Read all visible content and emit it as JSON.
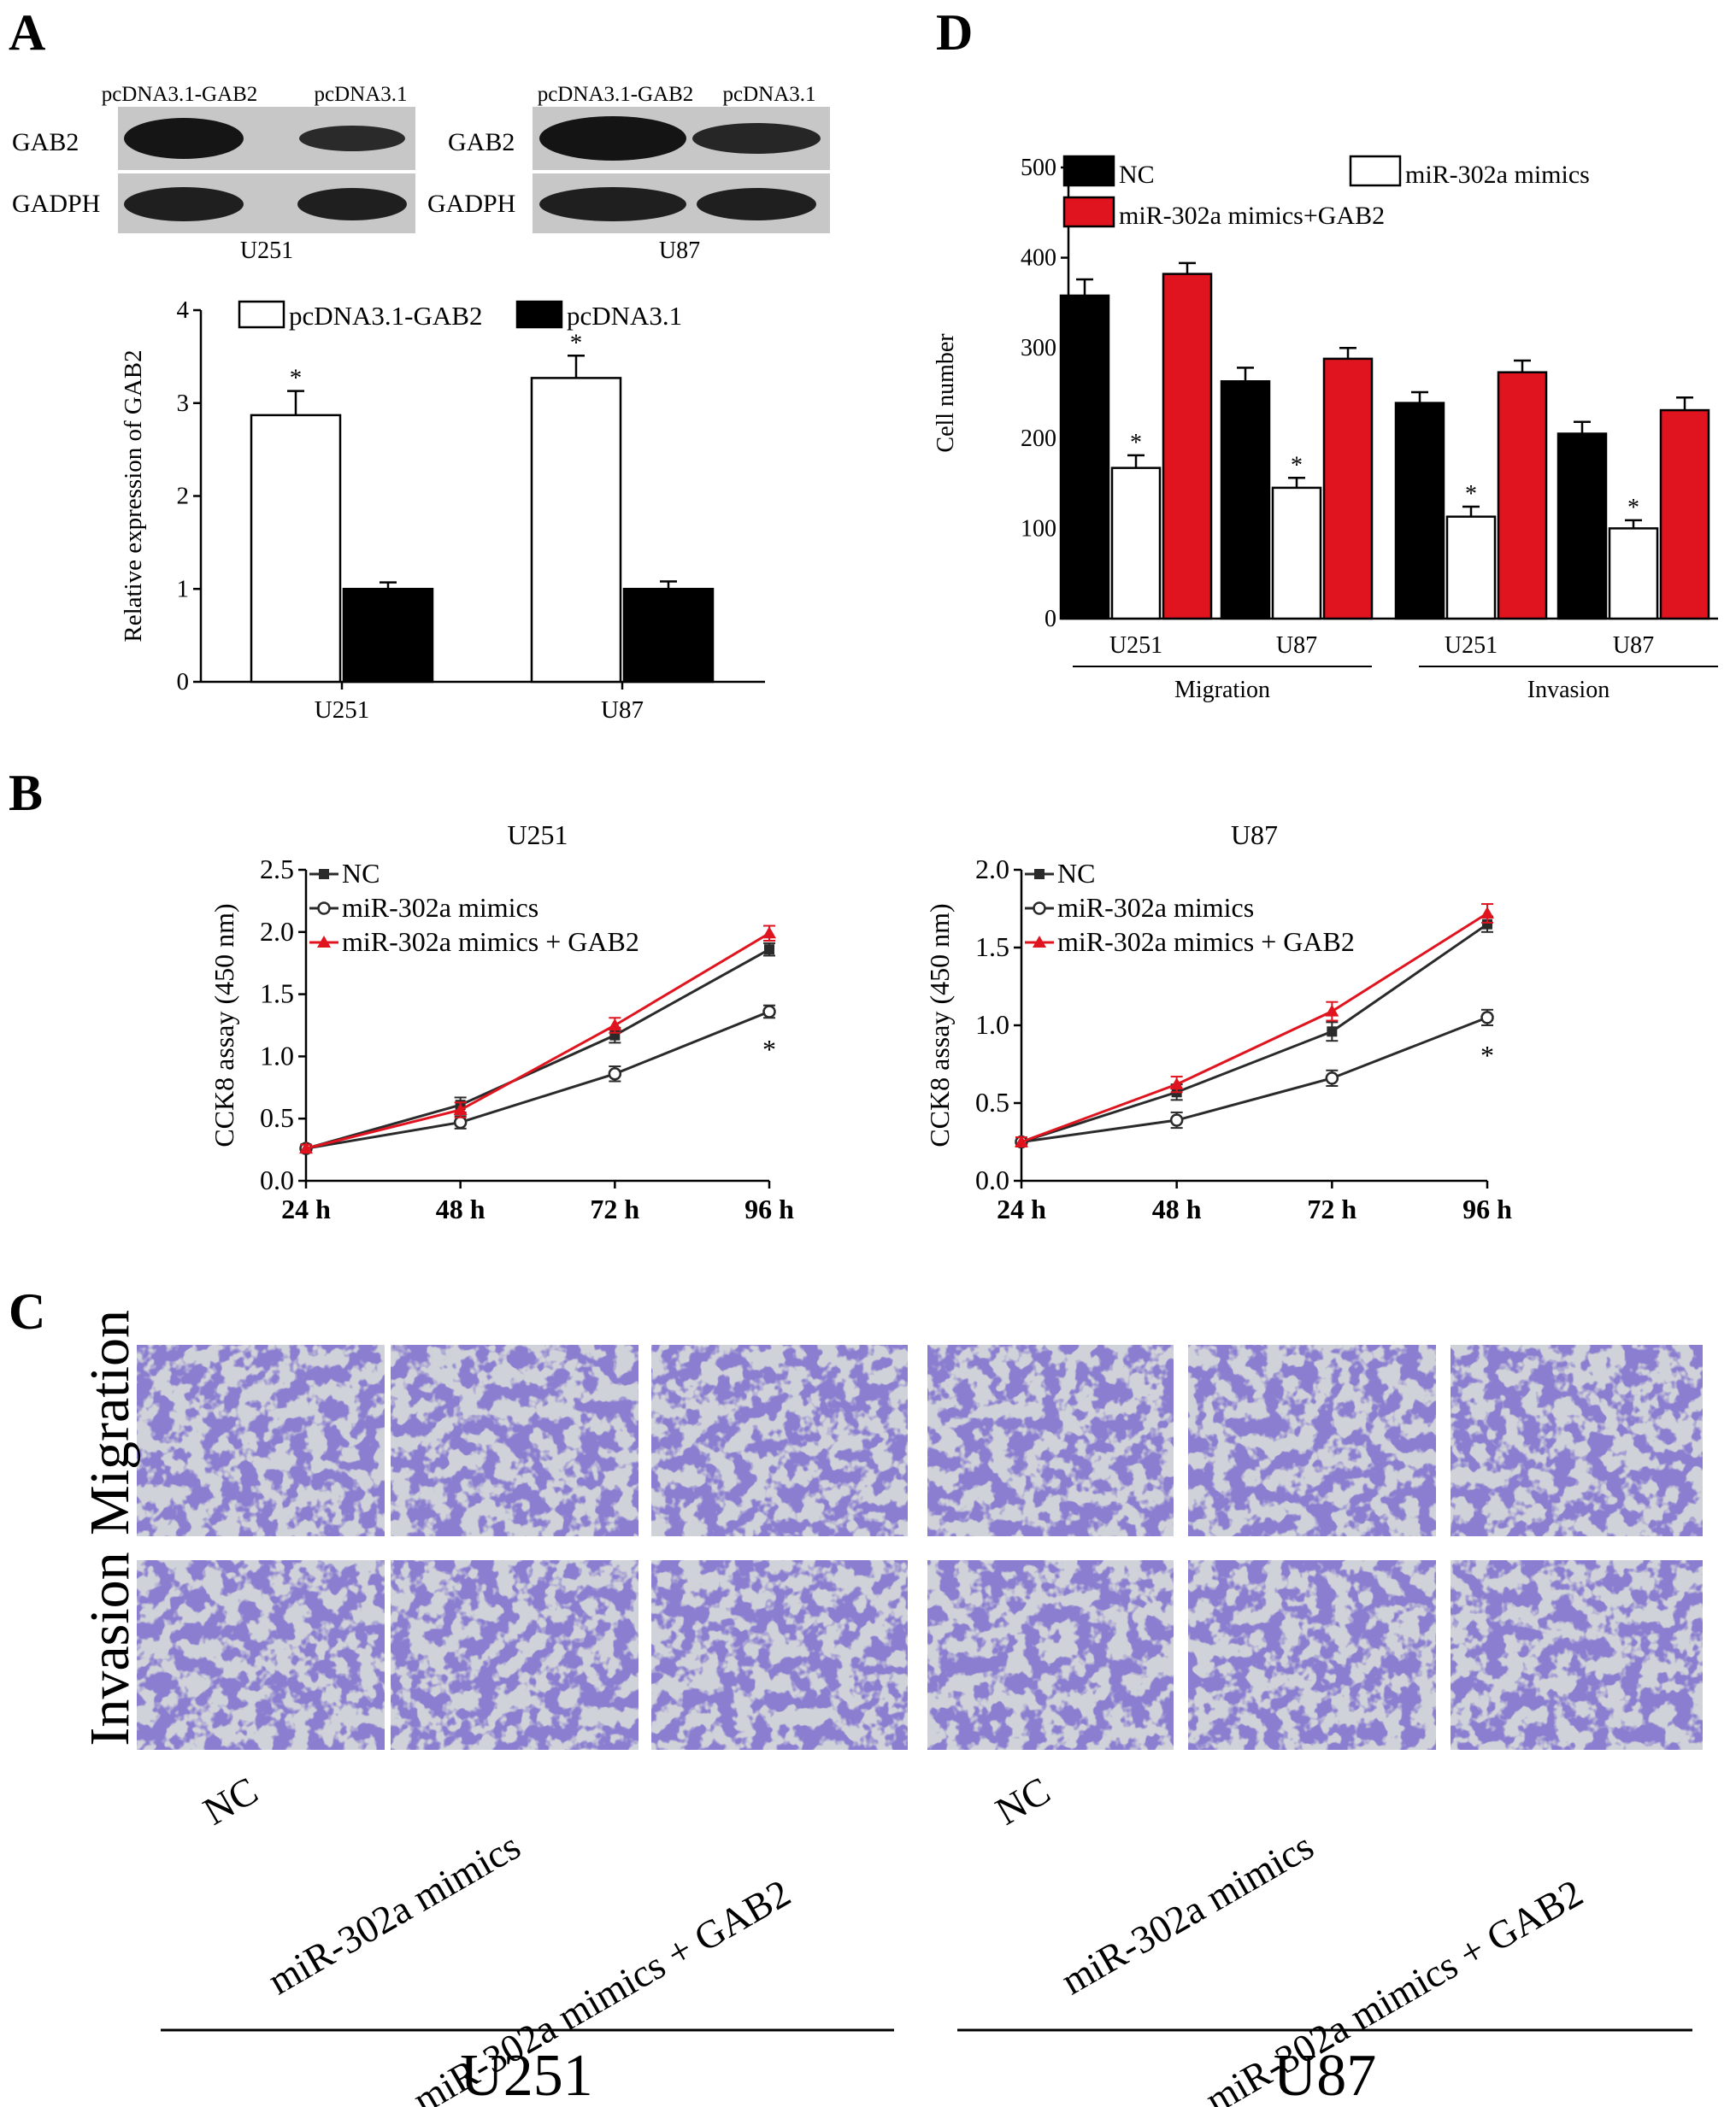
{
  "panels": {
    "A": "A",
    "B": "B",
    "C": "C",
    "D": "D"
  },
  "blots": [
    {
      "col1": "pcDNA3.1-GAB2",
      "col2": "pcDNA3.1",
      "row1": "GAB2",
      "row2": "GADPH",
      "cell": "U251"
    },
    {
      "col1": "pcDNA3.1-GAB2",
      "col2": "pcDNA3.1",
      "row1": "GAB2",
      "row2": "GADPH",
      "cell": "U87"
    }
  ],
  "photos": {
    "row_labels": [
      "Migration",
      "Invasion"
    ],
    "col_labels": [
      "NC",
      "miR-302a mimics",
      "miR-302a mimics + GAB2"
    ],
    "groups": [
      "U251",
      "U87"
    ],
    "stain_color": "#3a2fa0",
    "background_color": "#cfd2d8"
  },
  "chart_data": [
    {
      "panel": "A",
      "type": "bar",
      "title": "",
      "xlabel": "",
      "ylabel": "Relative expression of GAB2",
      "ylim": [
        0,
        4
      ],
      "yticks": [
        0,
        1,
        2,
        3,
        4
      ],
      "categories": [
        "U251",
        "U87"
      ],
      "legend_position": "top",
      "series": [
        {
          "name": "pcDNA3.1-GAB2",
          "fill": "#ffffff",
          "values": [
            2.87,
            3.27
          ],
          "errors": [
            0.26,
            0.24
          ],
          "markers": [
            "*",
            "*"
          ]
        },
        {
          "name": "pcDNA3.1",
          "fill": "#000000",
          "values": [
            1.0,
            1.0
          ],
          "errors": [
            0.07,
            0.08
          ],
          "markers": [
            "",
            ""
          ]
        }
      ]
    },
    {
      "panel": "D",
      "type": "bar",
      "title": "",
      "xlabel": "",
      "ylabel": "Cell number",
      "ylim": [
        0,
        500
      ],
      "yticks": [
        0,
        100,
        200,
        300,
        400,
        500
      ],
      "categories": [
        "U251",
        "U87",
        "U251",
        "U87"
      ],
      "groups": [
        {
          "label": "Migration",
          "categories": [
            0,
            1
          ]
        },
        {
          "label": "Invasion",
          "categories": [
            2,
            3
          ]
        }
      ],
      "legend_position": "top",
      "series": [
        {
          "name": "NC",
          "fill": "#000000",
          "values": [
            358,
            263,
            239,
            205
          ],
          "errors": [
            18,
            15,
            12,
            13
          ],
          "markers": [
            "",
            "",
            "",
            ""
          ]
        },
        {
          "name": "miR-302a mimics",
          "fill": "#ffffff",
          "values": [
            167,
            145,
            113,
            100
          ],
          "errors": [
            14,
            11,
            11,
            9
          ],
          "markers": [
            "*",
            "*",
            "*",
            "*"
          ]
        },
        {
          "name": "miR-302a mimics+GAB2",
          "fill": "#e0141e",
          "values": [
            382,
            288,
            273,
            231
          ],
          "errors": [
            12,
            12,
            13,
            14
          ],
          "markers": [
            "",
            "",
            "",
            ""
          ]
        }
      ]
    },
    {
      "panel": "B",
      "type": "line",
      "title": "U251",
      "xlabel": "",
      "ylabel": "CCK8 assay (450 nm)",
      "x": [
        "24 h",
        "48 h",
        "72 h",
        "96 h"
      ],
      "ylim": [
        0,
        2.5
      ],
      "yticks": [
        "0.0",
        "0.5",
        "1.0",
        "1.5",
        "2.0",
        "2.5"
      ],
      "legend_position": "top-left",
      "annotation": "*",
      "series": [
        {
          "name": "NC",
          "color": "#2a2a2a",
          "marker": "square",
          "values": [
            0.26,
            0.61,
            1.17,
            1.86
          ],
          "errors": [
            0.03,
            0.06,
            0.06,
            0.05
          ]
        },
        {
          "name": "miR-302a mimics",
          "color": "#2a2a2a",
          "marker": "circle",
          "values": [
            0.26,
            0.47,
            0.86,
            1.36
          ],
          "errors": [
            0.03,
            0.05,
            0.06,
            0.05
          ]
        },
        {
          "name": "miR-302a mimics + GAB2",
          "color": "#e0141e",
          "marker": "triangle",
          "values": [
            0.26,
            0.57,
            1.25,
            1.99
          ],
          "errors": [
            0.03,
            0.06,
            0.06,
            0.06
          ]
        }
      ]
    },
    {
      "panel": "B",
      "type": "line",
      "title": "U87",
      "xlabel": "",
      "ylabel": "CCK8 assay (450 nm)",
      "x": [
        "24 h",
        "48 h",
        "72 h",
        "96 h"
      ],
      "ylim": [
        0,
        2.0
      ],
      "yticks": [
        "0.0",
        "0.5",
        "1.0",
        "1.5",
        "2.0"
      ],
      "legend_position": "top-left",
      "annotation": "*",
      "series": [
        {
          "name": "NC",
          "color": "#2a2a2a",
          "marker": "square",
          "values": [
            0.25,
            0.57,
            0.96,
            1.65
          ],
          "errors": [
            0.03,
            0.05,
            0.06,
            0.05
          ]
        },
        {
          "name": "miR-302a mimics",
          "color": "#2a2a2a",
          "marker": "circle",
          "values": [
            0.25,
            0.39,
            0.66,
            1.05
          ],
          "errors": [
            0.03,
            0.05,
            0.05,
            0.05
          ]
        },
        {
          "name": "miR-302a mimics + GAB2",
          "color": "#e0141e",
          "marker": "triangle",
          "values": [
            0.25,
            0.62,
            1.09,
            1.72
          ],
          "errors": [
            0.03,
            0.05,
            0.06,
            0.06
          ]
        }
      ]
    }
  ]
}
